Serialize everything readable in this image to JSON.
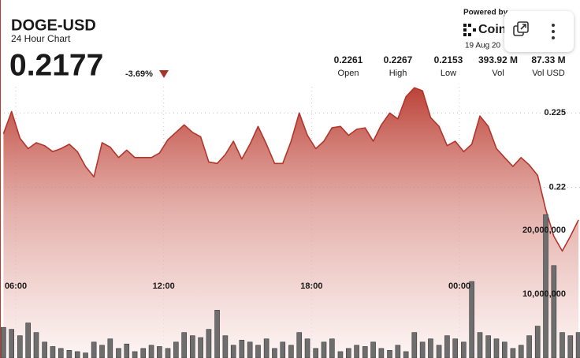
{
  "chart_data": {
    "type": "line",
    "title": "DOGE-USD",
    "subtitle": "24 Hour Chart",
    "price": "0.2177",
    "change": "-3.69%",
    "powered_by": "Powered by",
    "brand": "CoinDesk",
    "date": "19 Aug 20",
    "stats": [
      {
        "value": "0.2261",
        "label": "Open"
      },
      {
        "value": "0.2267",
        "label": "High"
      },
      {
        "value": "0.2153",
        "label": "Low"
      },
      {
        "value": "393.92 M",
        "label": "Vol"
      },
      {
        "value": "87.33 M",
        "label": "Vol USD"
      }
    ],
    "x": [
      5.5,
      5.83,
      6.17,
      6.5,
      6.83,
      7.17,
      7.5,
      7.83,
      8.17,
      8.5,
      8.83,
      9.17,
      9.5,
      9.83,
      10.17,
      10.5,
      10.83,
      11.17,
      11.5,
      11.83,
      12.17,
      12.5,
      12.83,
      13.17,
      13.5,
      13.83,
      14.17,
      14.5,
      14.83,
      15.17,
      15.5,
      15.83,
      16.17,
      16.5,
      16.83,
      17.17,
      17.5,
      17.83,
      18.17,
      18.5,
      18.83,
      19.17,
      19.5,
      19.83,
      20.17,
      20.5,
      20.83,
      21.17,
      21.5,
      21.83,
      22.17,
      22.5,
      22.83,
      23.17,
      23.5,
      23.83,
      24.17,
      24.5,
      24.83,
      25.17,
      25.5,
      25.83,
      26.17,
      26.5,
      26.83,
      27.17,
      27.5,
      27.83,
      28.17,
      28.5,
      28.83
    ],
    "series": [
      {
        "color": "#b3352b",
        "values": [
          0.2236,
          0.2251,
          0.2233,
          0.2226,
          0.223,
          0.2228,
          0.2224,
          0.2226,
          0.2229,
          0.2224,
          0.2214,
          0.2207,
          0.223,
          0.2227,
          0.222,
          0.2225,
          0.222,
          0.222,
          0.222,
          0.2223,
          0.2232,
          0.2237,
          0.2242,
          0.2237,
          0.2234,
          0.2217,
          0.2216,
          0.2222,
          0.2231,
          0.2219,
          0.2229,
          0.2241,
          0.2229,
          0.2216,
          0.2216,
          0.2231,
          0.225,
          0.2235,
          0.2226,
          0.2231,
          0.224,
          0.2241,
          0.2235,
          0.2239,
          0.224,
          0.2231,
          0.2242,
          0.225,
          0.2246,
          0.2261,
          0.2267,
          0.2265,
          0.2247,
          0.2241,
          0.2228,
          0.2231,
          0.2224,
          0.2229,
          0.2248,
          0.2241,
          0.2226,
          0.222,
          0.2214,
          0.222,
          0.2215,
          0.2208,
          0.2185,
          0.2167,
          0.2157,
          0.2167,
          0.2178
        ]
      },
      {
        "type": "bar",
        "axis": "y2",
        "color": "#6e6e6e",
        "values": [
          4800000,
          4500000,
          3500000,
          5500000,
          4000000,
          2500000,
          1800000,
          1500000,
          1200000,
          1000000,
          800000,
          2500000,
          2000000,
          3000000,
          1500000,
          2200000,
          1000000,
          1500000,
          2000000,
          1800000,
          1500000,
          2500000,
          4000000,
          3500000,
          3200000,
          4500000,
          7500000,
          3500000,
          2000000,
          2800000,
          2500000,
          2000000,
          3000000,
          1500000,
          2500000,
          2000000,
          4000000,
          3000000,
          1500000,
          2500000,
          3000000,
          1000000,
          1500000,
          2000000,
          1800000,
          2500000,
          1500000,
          1200000,
          2000000,
          1000000,
          4000000,
          2500000,
          3000000,
          2000000,
          3500000,
          3000000,
          2500000,
          12000000,
          4000000,
          3500000,
          3000000,
          2500000,
          1500000,
          2000000,
          3500000,
          5000000,
          22500000,
          14500000,
          4000000,
          3500000,
          4000000
        ]
      }
    ],
    "xlim": [
      5.36,
      28.89
    ],
    "xticks": [
      {
        "value": 6,
        "label": "06:00"
      },
      {
        "value": 12,
        "label": "12:00"
      },
      {
        "value": 18,
        "label": "18:00"
      },
      {
        "value": 24,
        "label": "00:00"
      }
    ],
    "ylim": [
      0.2085,
      0.2273
    ],
    "yticks": [
      0.22,
      0.225
    ],
    "y2lim": [
      0,
      24000000
    ],
    "y2ticks": [
      {
        "value": 10000000,
        "label": "10,000,000"
      },
      {
        "value": 20000000,
        "label": "20,000,000"
      }
    ],
    "grid": true
  }
}
